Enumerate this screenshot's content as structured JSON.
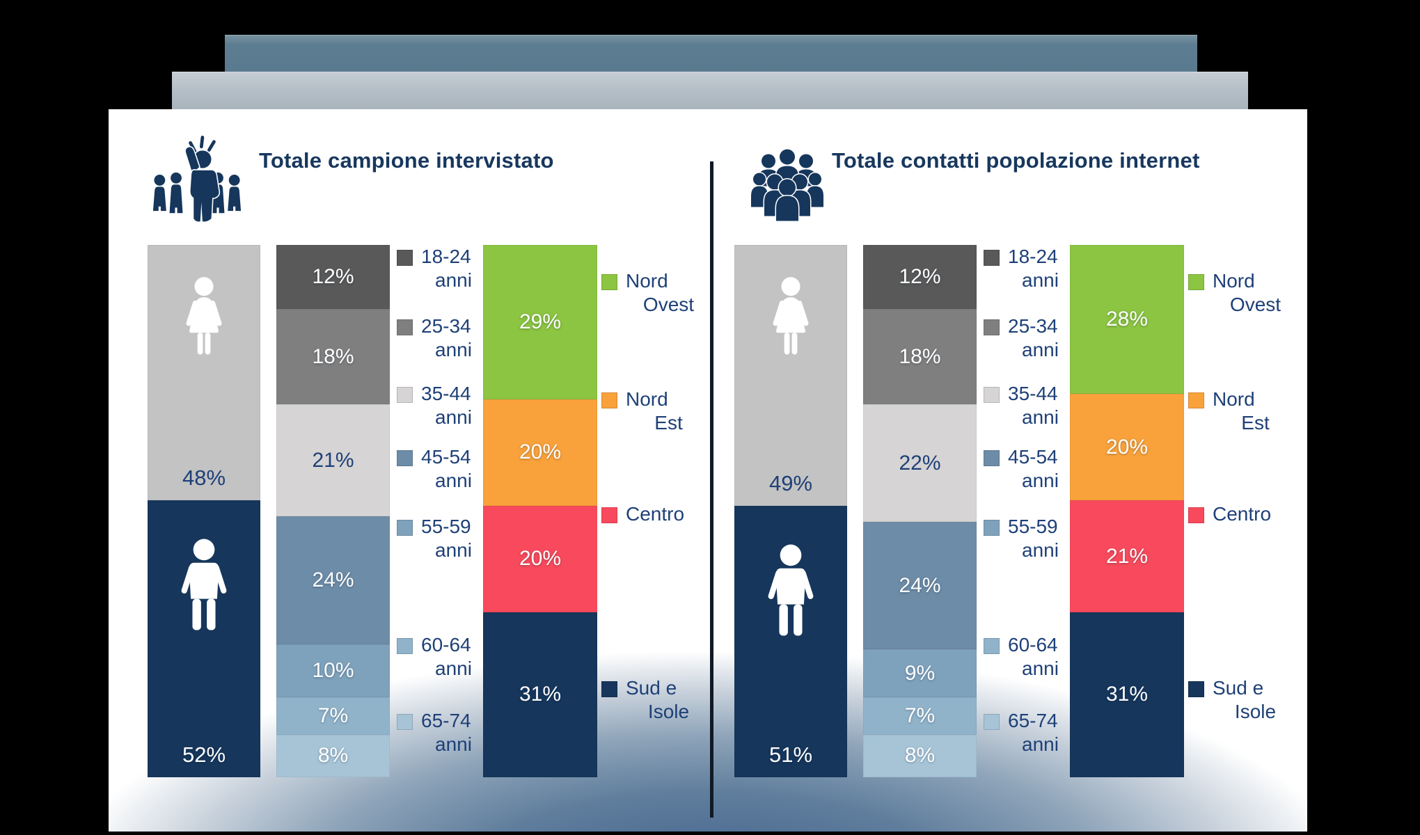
{
  "chart_data": {
    "type": "bar",
    "subtype": "100-percent-stacked-column-infographic",
    "unit": "percent",
    "legend_position": "right-of-each-bar",
    "colors": {
      "female_segment": "#c3c3c3",
      "male_segment": "#16365c",
      "age_segments": [
        "#595959",
        "#7f7f7f",
        "#d6d4d4",
        "#6d8ca7",
        "#7fa2bc",
        "#90b3ca",
        "#a7c4d7"
      ],
      "region_segments": [
        "#8cc541",
        "#f9a23b",
        "#f84a5c",
        "#16365c"
      ],
      "icon_navy": "#16365c",
      "title_navy": "#17375e",
      "legend_text_navy": "#1e4077",
      "deco_bar_top": "#5d7d92",
      "deco_bar_mid": "#b2bcc4",
      "bottom_glow": "#42638c"
    },
    "icons": {
      "left_title": "presenter-group-icon",
      "right_title": "crowd-icon",
      "gender_top": "female-icon",
      "gender_bottom": "male-icon"
    },
    "age_legend": [
      {
        "line1": "18-24",
        "line2": "anni"
      },
      {
        "line1": "25-34",
        "line2": "anni"
      },
      {
        "line1": "35-44",
        "line2": "anni"
      },
      {
        "line1": "45-54",
        "line2": "anni"
      },
      {
        "line1": "55-59",
        "line2": "anni"
      },
      {
        "line1": "60-64",
        "line2": "anni"
      },
      {
        "line1": "65-74",
        "line2": "anni"
      }
    ],
    "region_legend": [
      {
        "line1": "Nord",
        "line2": "Ovest"
      },
      {
        "line1": "Nord",
        "line2": "Est"
      },
      {
        "line1": "Centro",
        "line2": ""
      },
      {
        "line1": "Sud e",
        "line2": "Isole"
      }
    ],
    "panels": [
      {
        "title": "Totale campione intervistato",
        "icon": "presenter-group-icon",
        "gender": {
          "female": {
            "value": 48,
            "display": "48%"
          },
          "male": {
            "value": 52,
            "display": "52%"
          }
        },
        "age_segments": [
          {
            "label": "18-24 anni",
            "value": 12,
            "display": "12%"
          },
          {
            "label": "25-34 anni",
            "value": 18,
            "display": "18%"
          },
          {
            "label": "35-44 anni",
            "value": 21,
            "display": "21%"
          },
          {
            "label": "45-54 anni",
            "value": 24,
            "display": "24%"
          },
          {
            "label": "55-59 anni",
            "value": 10,
            "display": "10%"
          },
          {
            "label": "60-64 anni",
            "value": 7,
            "display": "7%"
          },
          {
            "label": "65-74 anni",
            "value": 8,
            "display": "8%"
          }
        ],
        "region_segments": [
          {
            "label": "Nord Ovest",
            "value": 29,
            "display": "29%"
          },
          {
            "label": "Nord Est",
            "value": 20,
            "display": "20%"
          },
          {
            "label": "Centro",
            "value": 20,
            "display": "20%"
          },
          {
            "label": "Sud e Isole",
            "value": 31,
            "display": "31%"
          }
        ]
      },
      {
        "title": "Totale contatti popolazione internet",
        "icon": "crowd-icon",
        "gender": {
          "female": {
            "value": 49,
            "display": "49%"
          },
          "male": {
            "value": 51,
            "display": "51%"
          }
        },
        "age_segments": [
          {
            "label": "18-24 anni",
            "value": 12,
            "display": "12%"
          },
          {
            "label": "25-34 anni",
            "value": 18,
            "display": "18%"
          },
          {
            "label": "35-44 anni",
            "value": 22,
            "display": "22%"
          },
          {
            "label": "45-54 anni",
            "value": 24,
            "display": "24%"
          },
          {
            "label": "55-59 anni",
            "value": 9,
            "display": "9%"
          },
          {
            "label": "60-64 anni",
            "value": 7,
            "display": "7%"
          },
          {
            "label": "65-74 anni",
            "value": 8,
            "display": "8%"
          }
        ],
        "region_segments": [
          {
            "label": "Nord Ovest",
            "value": 28,
            "display": "28%"
          },
          {
            "label": "Nord Est",
            "value": 20,
            "display": "20%"
          },
          {
            "label": "Centro",
            "value": 21,
            "display": "21%"
          },
          {
            "label": "Sud e Isole",
            "value": 31,
            "display": "31%"
          }
        ]
      }
    ]
  }
}
